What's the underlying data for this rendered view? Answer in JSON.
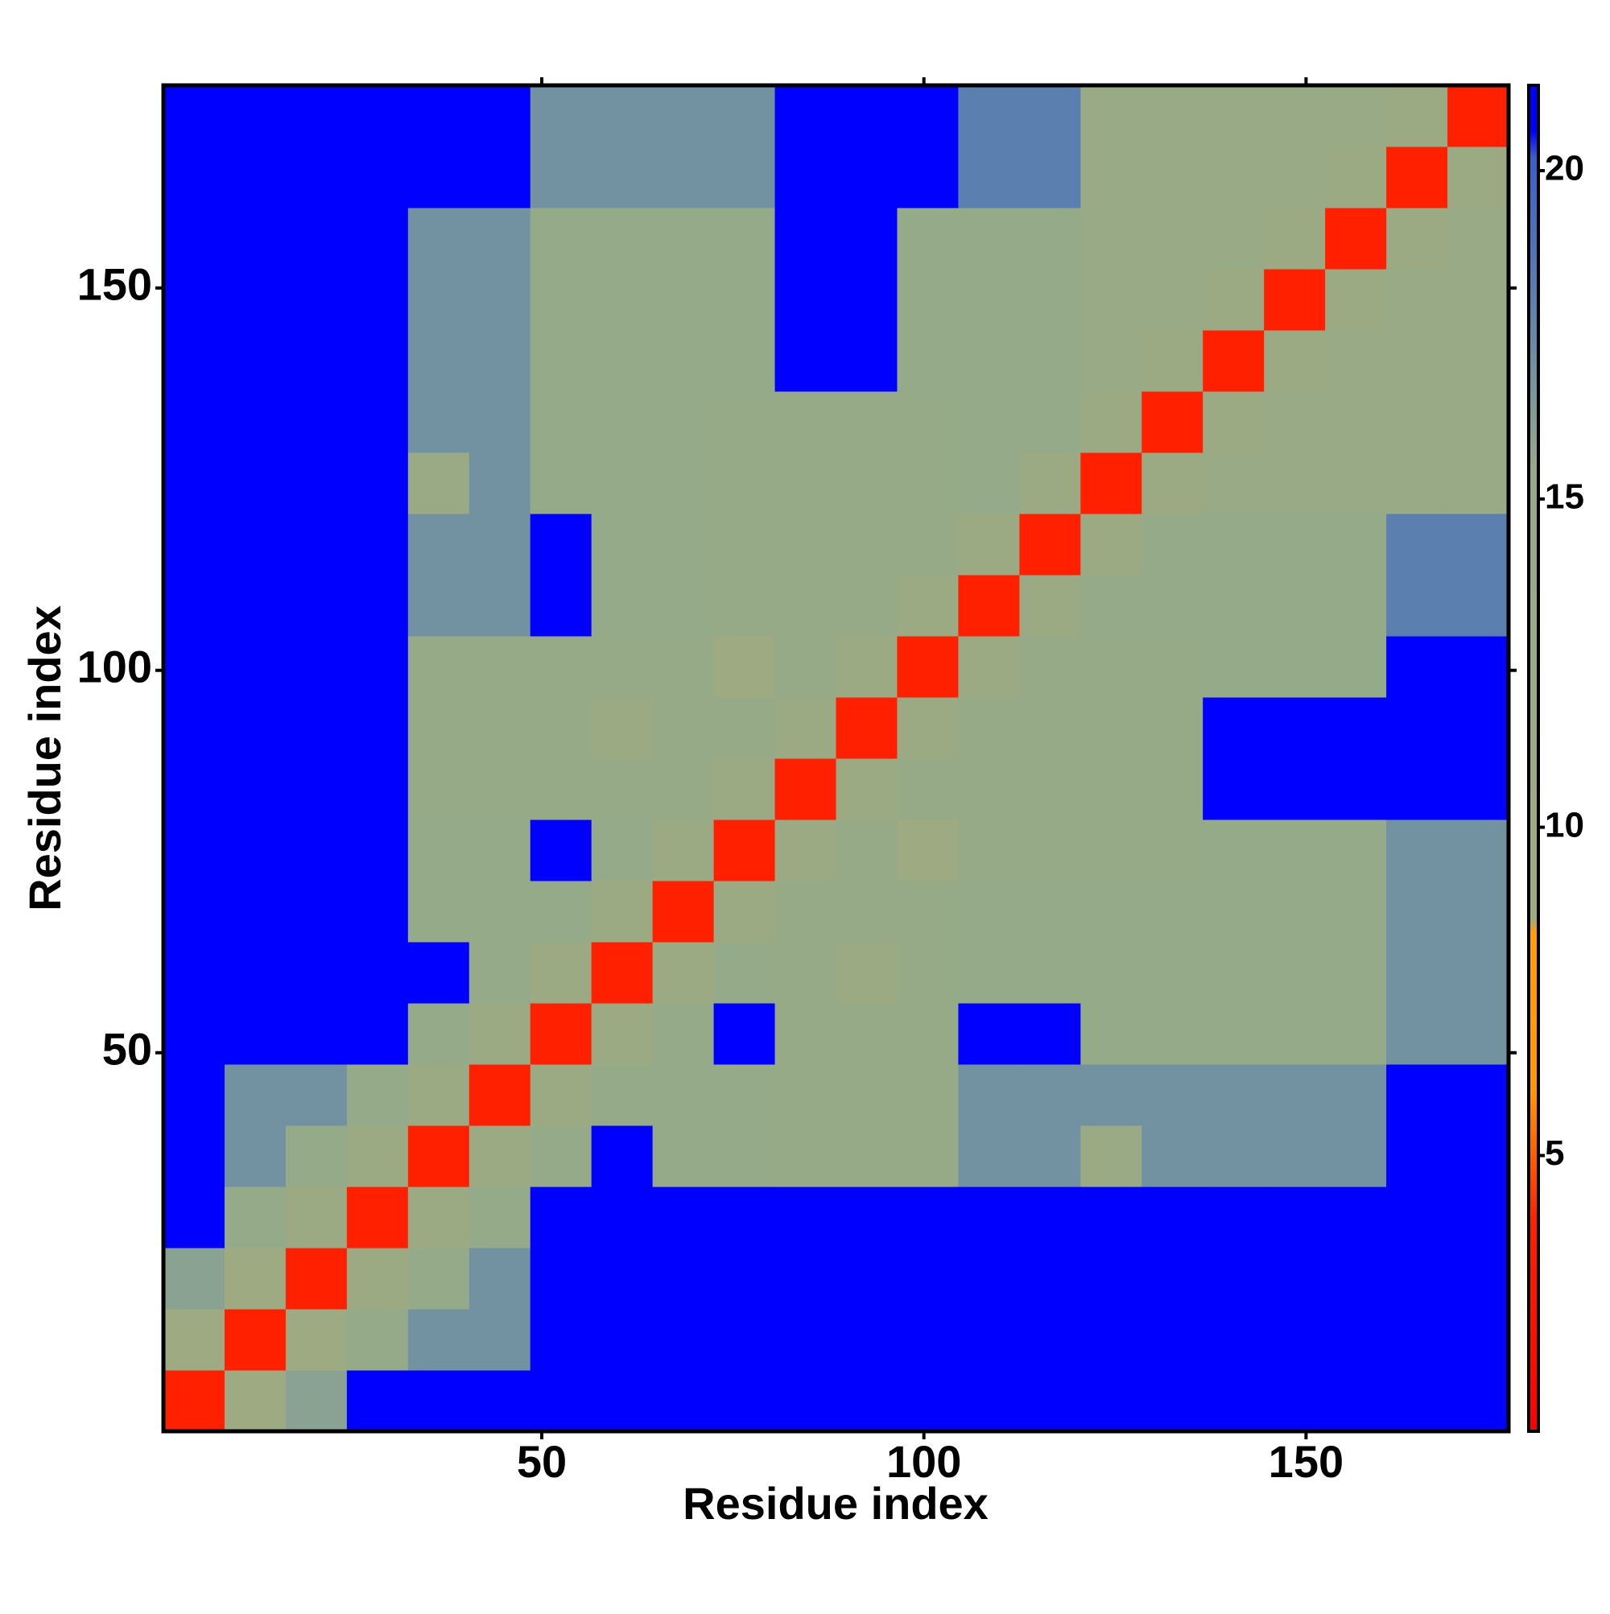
{
  "chart_data": {
    "type": "heatmap",
    "x_label": "Residue index",
    "y_label": "Residue index",
    "xlim": [
      0.5,
      176.5
    ],
    "ylim": [
      0.5,
      176.5
    ],
    "xticks": [
      50,
      100,
      150
    ],
    "yticks": [
      50,
      100,
      150
    ],
    "x": [
      4.5,
      12.5,
      20.5,
      28.5,
      36.5,
      44.5,
      52.5,
      60.5,
      68.5,
      76.5,
      84.5,
      92.5,
      100.5,
      108.5,
      116.5,
      124.5,
      132.5,
      140.5,
      148.5,
      156.5,
      164.5,
      172.5
    ],
    "y": [
      4.5,
      12.5,
      20.5,
      28.5,
      36.5,
      44.5,
      52.5,
      60.5,
      68.5,
      76.5,
      84.5,
      92.5,
      100.5,
      108.5,
      116.5,
      124.5,
      132.5,
      140.5,
      148.5,
      156.5,
      164.5,
      172.5
    ],
    "z": [
      [
        4,
        10,
        16,
        21,
        21,
        21,
        21,
        21,
        21,
        21,
        21,
        21,
        21,
        21,
        21,
        21,
        21,
        21,
        21,
        21,
        21,
        21
      ],
      [
        10,
        4,
        10,
        15,
        17,
        17,
        21,
        21,
        21,
        21,
        21,
        21,
        21,
        21,
        21,
        21,
        21,
        21,
        21,
        21,
        21,
        21
      ],
      [
        16,
        10,
        4,
        11,
        15,
        17,
        21,
        21,
        21,
        21,
        21,
        21,
        21,
        21,
        21,
        21,
        21,
        21,
        21,
        21,
        21,
        21
      ],
      [
        21,
        15,
        11,
        4,
        11,
        15,
        21,
        21,
        21,
        21,
        21,
        21,
        21,
        21,
        21,
        21,
        21,
        21,
        21,
        21,
        21,
        21
      ],
      [
        21,
        17,
        15,
        11,
        4,
        11,
        15,
        21,
        15,
        15,
        14,
        14,
        14,
        17,
        17,
        12,
        17,
        17,
        17,
        17,
        21,
        21
      ],
      [
        21,
        17,
        17,
        15,
        11,
        4,
        11,
        15,
        15,
        15,
        14,
        14,
        14,
        17,
        17,
        17,
        17,
        17,
        17,
        17,
        21,
        21
      ],
      [
        21,
        21,
        21,
        21,
        15,
        11,
        4,
        11,
        15,
        21,
        14,
        14,
        14,
        21,
        21,
        15,
        15,
        15,
        15,
        15,
        17,
        17
      ],
      [
        21,
        21,
        21,
        21,
        21,
        15,
        11,
        4,
        11,
        15,
        14,
        11,
        14,
        15,
        15,
        15,
        15,
        15,
        15,
        15,
        17,
        17
      ],
      [
        21,
        21,
        21,
        21,
        15,
        15,
        15,
        11,
        4,
        11,
        14,
        14,
        14,
        15,
        15,
        15,
        15,
        15,
        15,
        15,
        17,
        17
      ],
      [
        21,
        21,
        21,
        21,
        15,
        15,
        21,
        15,
        11,
        4,
        11,
        14,
        10,
        14,
        14,
        14,
        14,
        15,
        15,
        15,
        17,
        17
      ],
      [
        21,
        21,
        21,
        21,
        14,
        14,
        14,
        14,
        14,
        11,
        4,
        11,
        14,
        14,
        14,
        14,
        14,
        21,
        21,
        21,
        21,
        21
      ],
      [
        21,
        21,
        21,
        21,
        14,
        14,
        14,
        11,
        14,
        14,
        11,
        4,
        11,
        14,
        14,
        14,
        14,
        21,
        21,
        21,
        21,
        21
      ],
      [
        21,
        21,
        21,
        21,
        14,
        14,
        14,
        14,
        14,
        10,
        14,
        11,
        4,
        11,
        14,
        14,
        14,
        15,
        15,
        15,
        21,
        21
      ],
      [
        21,
        21,
        21,
        21,
        17,
        17,
        21,
        15,
        15,
        14,
        14,
        14,
        11,
        4,
        11,
        15,
        15,
        15,
        15,
        15,
        18,
        18
      ],
      [
        21,
        21,
        21,
        21,
        17,
        17,
        21,
        15,
        15,
        14,
        14,
        14,
        14,
        11,
        4,
        11,
        15,
        15,
        15,
        15,
        18,
        18
      ],
      [
        21,
        21,
        21,
        21,
        12,
        17,
        15,
        15,
        15,
        14,
        14,
        14,
        14,
        15,
        11,
        4,
        11,
        13,
        13,
        13,
        13,
        13
      ],
      [
        21,
        21,
        21,
        21,
        17,
        17,
        15,
        15,
        15,
        14,
        14,
        14,
        14,
        15,
        15,
        11,
        4,
        11,
        13,
        13,
        13,
        13
      ],
      [
        21,
        21,
        21,
        21,
        17,
        17,
        15,
        15,
        15,
        15,
        21,
        21,
        15,
        15,
        15,
        13,
        11,
        4,
        11,
        13,
        13,
        13
      ],
      [
        21,
        21,
        21,
        21,
        17,
        17,
        15,
        15,
        15,
        15,
        21,
        21,
        15,
        15,
        15,
        13,
        13,
        11,
        4,
        11,
        13,
        13
      ],
      [
        21,
        21,
        21,
        21,
        17,
        17,
        15,
        15,
        15,
        15,
        21,
        21,
        15,
        15,
        15,
        13,
        13,
        13,
        11,
        4,
        11,
        13
      ],
      [
        21,
        21,
        21,
        21,
        21,
        21,
        17,
        17,
        17,
        17,
        21,
        21,
        21,
        18,
        18,
        13,
        13,
        13,
        13,
        11,
        4,
        11
      ],
      [
        21,
        21,
        21,
        21,
        21,
        21,
        17,
        17,
        17,
        17,
        21,
        21,
        21,
        18,
        18,
        13,
        13,
        13,
        13,
        13,
        11,
        4
      ]
    ],
    "zlim": [
      0.8,
      21.3
    ],
    "zticks": [
      5,
      10,
      15,
      20
    ],
    "colorscale": [
      [
        0.8,
        "#ff0000"
      ],
      [
        4.0,
        "#ff2000"
      ],
      [
        6.0,
        "#ff9900"
      ],
      [
        8.4,
        "#ff9f00"
      ],
      [
        8.6,
        "#a0aa80"
      ],
      [
        15.5,
        "#94aa8a"
      ],
      [
        18,
        "#5b80b0"
      ],
      [
        20.2,
        "#3a60c8"
      ],
      [
        20.6,
        "#0000ff"
      ],
      [
        21.3,
        "#0000ff"
      ]
    ]
  }
}
